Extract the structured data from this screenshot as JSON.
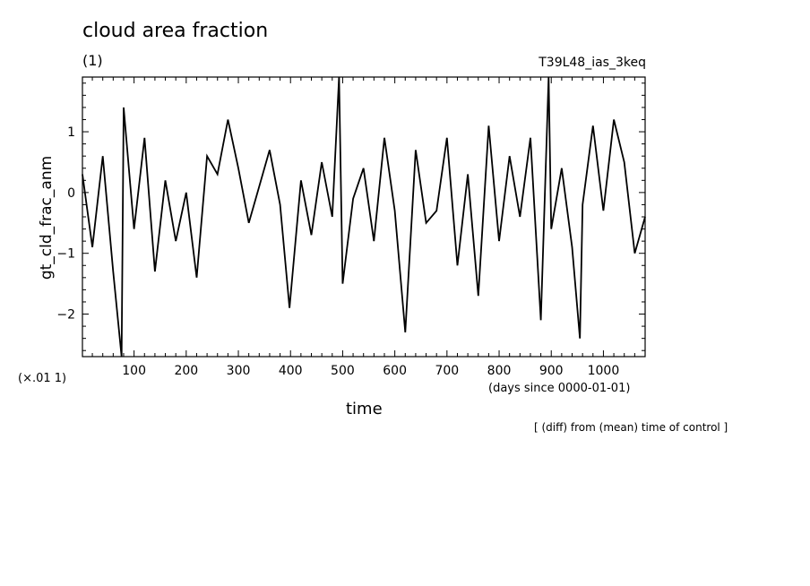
{
  "chart_data": {
    "type": "line",
    "title": "cloud area fraction",
    "units": "(1)",
    "run_label": "T39L48_ias_3keq",
    "xlabel": "time",
    "x_units": "(days since 0000-01-01)",
    "ylabel": "gt_cld_frac_anm",
    "y_scale_note": "(×.01 1)",
    "footnote": "[ (diff) from (mean) time of control ]",
    "xlim": [
      1,
      1080
    ],
    "ylim": [
      -2.7,
      1.9
    ],
    "x_ticks": [
      100,
      200,
      300,
      400,
      500,
      600,
      700,
      800,
      900,
      1000
    ],
    "x_tick_labels": [
      "100",
      "200",
      "300",
      "400",
      "500",
      "600",
      "700",
      "800",
      "900",
      "1000"
    ],
    "y_ticks": [
      -2,
      -1,
      0,
      1
    ],
    "y_tick_labels": [
      "−2",
      "−1",
      "0",
      "1"
    ],
    "line_color": "#000000",
    "series": [
      {
        "x": [
          1,
          20,
          40,
          60,
          76,
          80,
          100,
          120,
          140,
          160,
          180,
          200,
          220,
          240,
          260,
          280,
          300,
          320,
          340,
          360,
          380,
          398,
          420,
          440,
          460,
          480,
          493,
          500,
          520,
          540,
          560,
          580,
          600,
          620,
          640,
          660,
          680,
          700,
          720,
          740,
          760,
          780,
          800,
          820,
          840,
          860,
          880,
          895,
          900,
          920,
          940,
          955,
          960,
          980,
          1000,
          1020,
          1040,
          1060,
          1080
        ],
        "values": [
          0.3,
          -0.9,
          0.6,
          -1.3,
          -2.7,
          1.4,
          -0.6,
          0.9,
          -1.3,
          0.2,
          -0.8,
          0.0,
          -1.4,
          0.6,
          0.3,
          1.2,
          0.4,
          -0.5,
          0.1,
          0.7,
          -0.2,
          -1.9,
          0.2,
          -0.7,
          0.5,
          -0.4,
          1.9,
          -1.5,
          -0.1,
          0.4,
          -0.8,
          0.9,
          -0.3,
          -2.3,
          0.7,
          -0.5,
          -0.3,
          0.9,
          -1.2,
          0.3,
          -1.7,
          1.1,
          -0.8,
          0.6,
          -0.4,
          0.9,
          -2.1,
          1.9,
          -0.6,
          0.4,
          -0.9,
          -2.4,
          -0.2,
          1.1,
          -0.3,
          1.2,
          0.5,
          -1.0,
          -0.4
        ]
      }
    ]
  }
}
